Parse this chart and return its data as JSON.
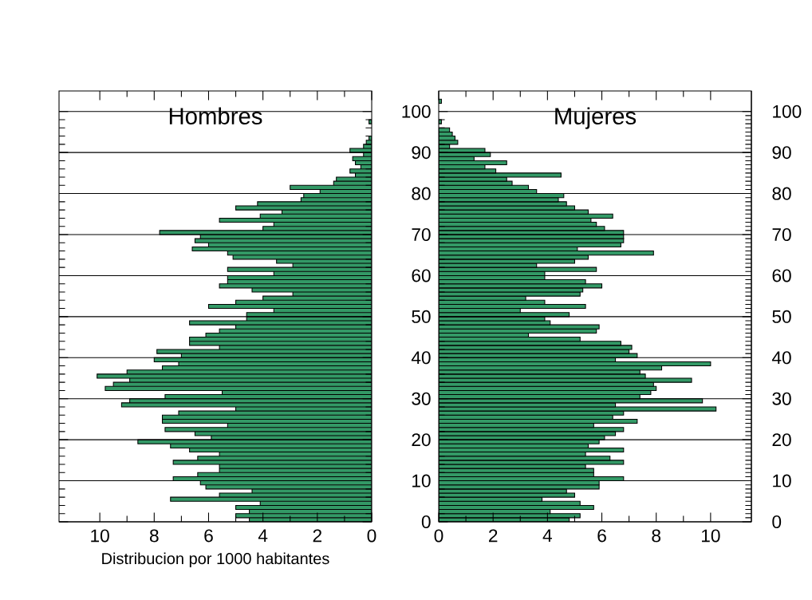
{
  "chart_data": [
    {
      "type": "bar",
      "orientation": "horizontal",
      "title": "Hombres",
      "xlabel": "Distribucion por 1000 habitantes",
      "color": "#339966",
      "x": [
        0.5,
        1.5,
        2.5,
        3.5,
        4.5,
        5.5,
        6.5,
        7.5,
        8.5,
        9.5,
        10.5,
        11.5,
        12.5,
        13.5,
        14.5,
        15.5,
        16.5,
        17.5,
        18.5,
        19.5,
        20.5,
        21.5,
        22.5,
        23.5,
        24.5,
        25.5,
        26.5,
        27.5,
        28.5,
        29.5,
        30.5,
        31.5,
        32.5,
        33.5,
        34.5,
        35.5,
        36.5,
        37.5,
        38.5,
        39.5,
        40.5,
        41.5,
        42.5,
        43.5,
        44.5,
        45.5,
        46.5,
        47.5,
        48.5,
        49.5,
        50.5,
        51.5,
        52.5,
        53.5,
        54.5,
        55.5,
        56.5,
        57.5,
        58.5,
        59.5,
        60.5,
        61.5,
        62.5,
        63.5,
        64.5,
        65.5,
        66.5,
        67.5,
        68.5,
        69.5,
        70.5,
        71.5,
        72.5,
        73.5,
        74.5,
        75.5,
        76.5,
        77.5,
        78.5,
        79.5,
        80.5,
        81.5,
        82.5,
        83.5,
        84.5,
        85.5,
        86.5,
        87.5,
        88.5,
        89.5,
        90.5,
        91.5,
        92.5,
        93.5,
        94.5,
        95.5,
        96.5,
        97.5
      ],
      "values": [
        4.5,
        5.0,
        4.5,
        5.0,
        4.1,
        7.4,
        5.6,
        4.4,
        6.1,
        6.3,
        7.3,
        6.4,
        5.6,
        5.6,
        7.3,
        6.4,
        5.6,
        6.7,
        7.4,
        8.6,
        5.9,
        6.5,
        7.6,
        5.3,
        7.7,
        7.7,
        7.1,
        5.0,
        9.2,
        8.9,
        7.6,
        5.5,
        9.8,
        9.5,
        8.9,
        10.1,
        9.0,
        7.7,
        7.1,
        8.0,
        7.0,
        7.9,
        5.6,
        6.7,
        6.7,
        6.1,
        5.6,
        5.0,
        6.7,
        4.6,
        4.6,
        3.6,
        6.0,
        5.0,
        4.0,
        2.9,
        4.4,
        5.6,
        5.3,
        5.3,
        3.6,
        5.3,
        2.9,
        3.5,
        5.1,
        5.3,
        6.6,
        6.0,
        6.5,
        6.3,
        7.8,
        4.0,
        3.6,
        5.6,
        4.1,
        3.3,
        5.0,
        4.2,
        2.6,
        2.5,
        1.9,
        3.0,
        1.4,
        1.3,
        0.6,
        0.8,
        0.4,
        0.6,
        0.7,
        0.3,
        0.8,
        0.3,
        0.2,
        0.1,
        null,
        null,
        null,
        0.1
      ],
      "xlim": [
        11.5,
        0
      ],
      "xticks": [
        0,
        2,
        4,
        6,
        8,
        10
      ],
      "ylim": [
        0,
        105
      ],
      "yticks": [
        0,
        10,
        20,
        30,
        40,
        50,
        60,
        70,
        80,
        90,
        100
      ],
      "grid": "y",
      "tick_labels": "x"
    },
    {
      "type": "bar",
      "orientation": "horizontal",
      "title": "Mujeres",
      "color": "#339966",
      "x": [
        0.5,
        1.5,
        2.5,
        3.5,
        4.5,
        5.5,
        6.5,
        7.5,
        8.5,
        9.5,
        10.5,
        11.5,
        12.5,
        13.5,
        14.5,
        15.5,
        16.5,
        17.5,
        18.5,
        19.5,
        20.5,
        21.5,
        22.5,
        23.5,
        24.5,
        25.5,
        26.5,
        27.5,
        28.5,
        29.5,
        30.5,
        31.5,
        32.5,
        33.5,
        34.5,
        35.5,
        36.5,
        37.5,
        38.5,
        39.5,
        40.5,
        41.5,
        42.5,
        43.5,
        44.5,
        45.5,
        46.5,
        47.5,
        48.5,
        49.5,
        50.5,
        51.5,
        52.5,
        53.5,
        54.5,
        55.5,
        56.5,
        57.5,
        58.5,
        59.5,
        60.5,
        61.5,
        62.5,
        63.5,
        64.5,
        65.5,
        66.5,
        67.5,
        68.5,
        69.5,
        70.5,
        71.5,
        72.5,
        73.5,
        74.5,
        75.5,
        76.5,
        77.5,
        78.5,
        79.5,
        80.5,
        81.5,
        82.5,
        83.5,
        84.5,
        85.5,
        86.5,
        87.5,
        88.5,
        89.5,
        90.5,
        91.5,
        92.5,
        93.5,
        94.5,
        95.5,
        96.5,
        97.5,
        98.5,
        99.5,
        100.5,
        101.5,
        102.5
      ],
      "values": [
        4.8,
        5.2,
        4.1,
        5.7,
        5.2,
        3.8,
        5.0,
        4.7,
        5.9,
        5.9,
        6.8,
        5.7,
        5.7,
        5.4,
        6.8,
        6.3,
        5.4,
        6.8,
        5.5,
        5.9,
        6.1,
        6.5,
        6.8,
        5.7,
        7.3,
        6.4,
        6.8,
        10.2,
        6.5,
        9.7,
        7.4,
        7.8,
        8.0,
        7.9,
        9.3,
        7.6,
        7.4,
        8.2,
        10.0,
        6.5,
        7.3,
        7.0,
        7.1,
        6.7,
        5.2,
        3.3,
        5.8,
        5.9,
        4.1,
        3.9,
        4.8,
        3.0,
        5.4,
        3.9,
        3.2,
        5.2,
        5.3,
        6.0,
        5.4,
        3.9,
        3.9,
        5.8,
        3.6,
        5.0,
        5.5,
        7.9,
        5.1,
        6.7,
        6.8,
        6.8,
        6.8,
        6.1,
        5.8,
        5.6,
        6.4,
        5.5,
        5.0,
        4.7,
        4.4,
        4.6,
        3.6,
        3.3,
        2.7,
        2.5,
        4.5,
        2.1,
        1.7,
        2.5,
        1.3,
        1.9,
        1.7,
        0.4,
        0.7,
        0.6,
        0.5,
        0.4,
        null,
        0.1,
        null,
        null,
        null,
        null,
        0.1
      ],
      "xlim": [
        0,
        11.5
      ],
      "xticks": [
        0,
        2,
        4,
        6,
        8,
        10
      ],
      "ylim": [
        0,
        105
      ],
      "yticks": [
        0,
        10,
        20,
        30,
        40,
        50,
        60,
        70,
        80,
        90,
        100
      ],
      "y2lim": [
        0,
        105
      ],
      "y2ticks": [
        0,
        10,
        20,
        30,
        40,
        50,
        60,
        70,
        80,
        90,
        100
      ],
      "grid": "y"
    }
  ]
}
